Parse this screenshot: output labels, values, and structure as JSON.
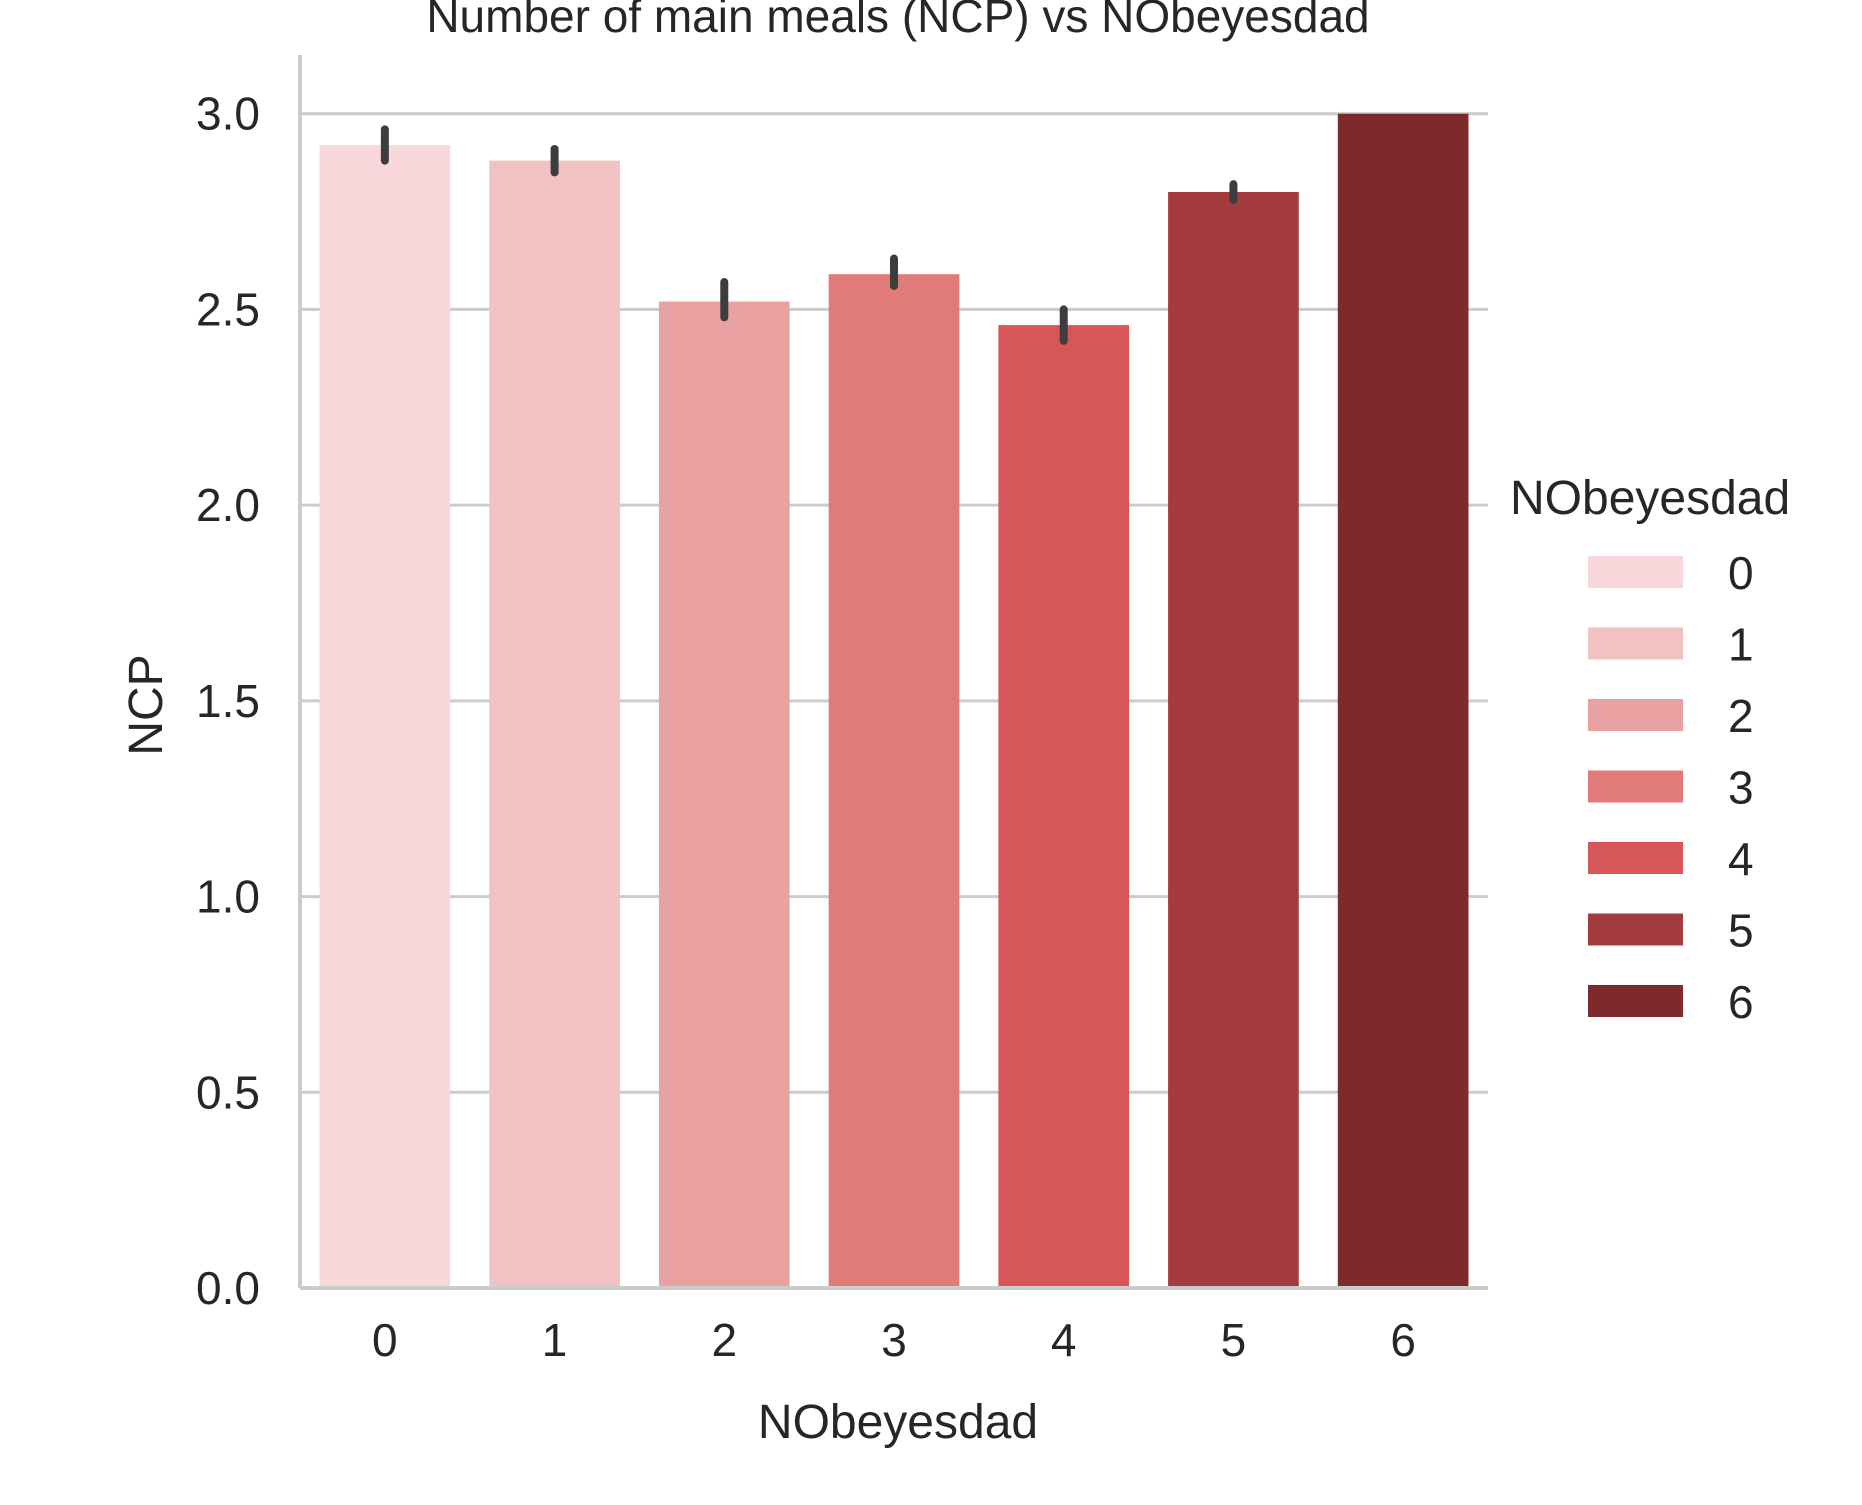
{
  "chart_data": {
    "type": "bar",
    "title": "Number of main meals (NCP) vs NObeyesdad",
    "xlabel": "NObeyesdad",
    "ylabel": "NCP",
    "categories": [
      "0",
      "1",
      "2",
      "3",
      "4",
      "5",
      "6"
    ],
    "values": [
      2.92,
      2.88,
      2.52,
      2.59,
      2.46,
      2.8,
      3.0
    ],
    "error_bars": [
      [
        2.88,
        2.96
      ],
      [
        2.85,
        2.91
      ],
      [
        2.48,
        2.57
      ],
      [
        2.56,
        2.63
      ],
      [
        2.42,
        2.5
      ],
      [
        2.78,
        2.82
      ],
      [
        3.0,
        3.0
      ]
    ],
    "ylim": [
      0,
      3.15
    ],
    "yticks": [
      0.0,
      0.5,
      1.0,
      1.5,
      2.0,
      2.5,
      3.0
    ],
    "ytick_labels": [
      "0.0",
      "0.5",
      "1.0",
      "1.5",
      "2.0",
      "2.5",
      "3.0"
    ],
    "grid": "horizontal",
    "colors": [
      "#f8d8da",
      "#f1c2c2",
      "#e9a2a1",
      "#e07b7a",
      "#d7565a",
      "#a43b3e",
      "#7d2a2d"
    ],
    "errorbar_color": "#3d3d3d",
    "grid_color": "#cccccc",
    "legend": {
      "title": "NObeyesdad",
      "placement": "right",
      "entries": [
        "0",
        "1",
        "2",
        "3",
        "4",
        "5",
        "6"
      ]
    }
  }
}
